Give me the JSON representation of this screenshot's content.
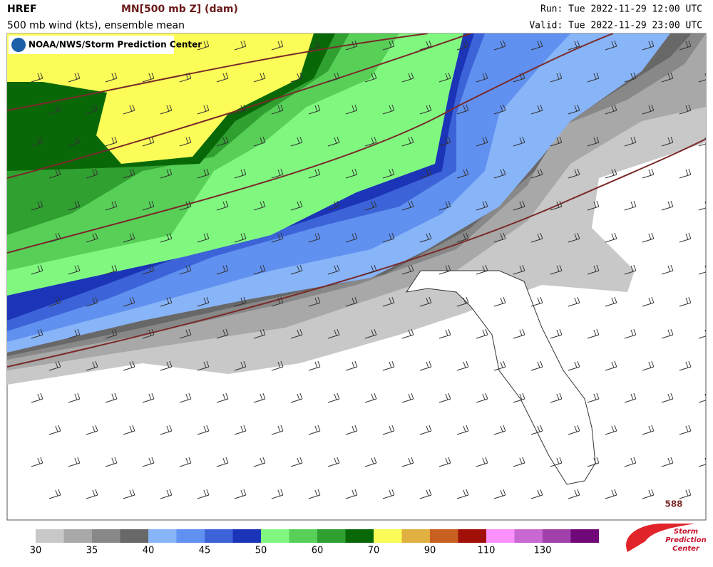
{
  "header": {
    "model": "HREF",
    "field": "MN[500 mb Z] (dam)",
    "subtitle": "500 mb wind (kts), ensemble mean",
    "run": "Run: Tue 2022-11-29 12:00 UTC",
    "valid": "Valid: Tue 2022-11-29 23:00 UTC"
  },
  "map": {
    "credit": "NOAA/NWS/Storm Prediction Center",
    "contour_label": "588"
  },
  "colorbar": {
    "colors": [
      "#c8c8c8",
      "#a8a8a8",
      "#888888",
      "#686868",
      "#88b4f8",
      "#6090f0",
      "#3c64d8",
      "#1c34b8",
      "#80f880",
      "#58d058",
      "#30a030",
      "#086808",
      "#fcfc58",
      "#e0b040",
      "#c86020",
      "#a01008",
      "#fc90fc",
      "#c868d0",
      "#a040a8",
      "#700878"
    ],
    "labels": [
      30,
      35,
      40,
      45,
      50,
      60,
      70,
      90,
      110,
      130
    ]
  },
  "logo": {
    "lines": [
      "Storm",
      "Prediction",
      "Center"
    ]
  }
}
